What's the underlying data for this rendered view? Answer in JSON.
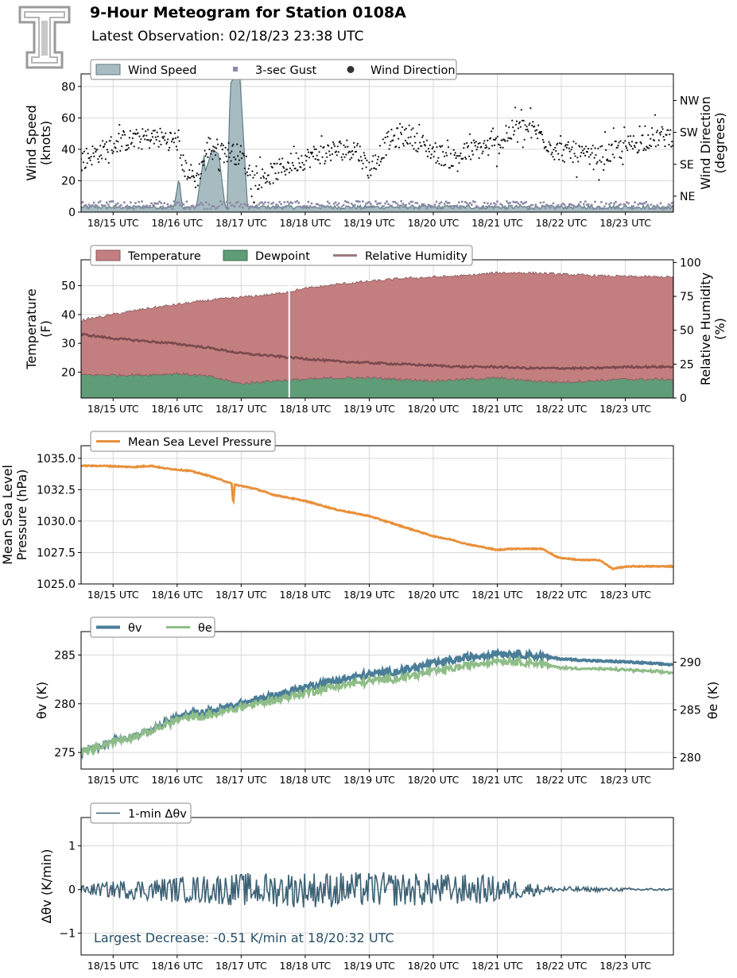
{
  "header": {
    "title": "9-Hour Meteogram for Station 0108A",
    "subtitle": "Latest Observation: 02/18/23 23:38 UTC"
  },
  "chart_data": [
    {
      "type": "area",
      "title": "",
      "ylabel": [
        "Wind Speed",
        "(knots)"
      ],
      "y2label": [
        "Wind Direction",
        "(degrees)"
      ],
      "xlim": [
        14.5,
        23.75
      ],
      "ylim": [
        0,
        88
      ],
      "y2lim": [
        0,
        390
      ],
      "yticks": [
        0,
        20,
        40,
        60,
        80
      ],
      "y2ticks": [
        45,
        135,
        225,
        315
      ],
      "y2ticklabels": [
        "NE",
        "SE",
        "SW",
        "NW"
      ],
      "x_ticks": [
        15,
        16,
        17,
        18,
        19,
        20,
        21,
        22,
        23
      ],
      "x_tick_labels": [
        "18/15 UTC",
        "18/16 UTC",
        "18/17 UTC",
        "18/18 UTC",
        "18/19 UTC",
        "18/20 UTC",
        "18/21 UTC",
        "18/22 UTC",
        "18/23 UTC"
      ],
      "legend": [
        "Wind Speed",
        "3-sec Gust",
        "Wind Direction"
      ],
      "legend_placement": "top-left",
      "grid": true,
      "colors": {
        "speed_fill": "#a7bcc1",
        "speed_line": "#5e7d85",
        "gust": "#8d8aa8",
        "direction": "#111111"
      },
      "series": [
        {
          "name": "Wind Speed",
          "kind": "area",
          "x": [
            14.5,
            15.0,
            15.5,
            15.95,
            16.03,
            16.08,
            16.15,
            16.3,
            16.42,
            16.44,
            16.55,
            16.65,
            16.7,
            16.75,
            16.78,
            16.83,
            16.88,
            16.98,
            17.1,
            17.5,
            18.0,
            18.5,
            19.0,
            19.5,
            20.0,
            20.5,
            21.0,
            21.5,
            22.0,
            22.5,
            23.0,
            23.5,
            23.75
          ],
          "values": [
            3,
            3,
            3,
            3,
            22,
            3,
            3,
            3,
            36,
            26,
            40,
            37,
            20,
            3,
            3,
            82,
            85,
            86,
            3,
            3,
            3,
            3,
            3,
            3,
            3,
            3,
            3,
            3,
            3,
            3,
            3,
            3,
            3
          ]
        },
        {
          "name": "3-sec Gust",
          "kind": "scatter",
          "x_range": [
            14.5,
            23.75
          ],
          "value_range": [
            2,
            7
          ]
        },
        {
          "name": "Wind Direction",
          "kind": "scatter",
          "x": [
            14.5,
            14.8,
            15.1,
            15.4,
            15.7,
            16.0,
            16.1,
            16.3,
            16.5,
            16.7,
            16.8,
            17.0,
            17.2,
            17.5,
            17.8,
            18.0,
            18.2,
            18.5,
            18.8,
            19.0,
            19.3,
            19.6,
            20.0,
            20.3,
            20.6,
            21.0,
            21.3,
            21.6,
            21.9,
            22.2,
            22.5,
            22.8,
            23.1,
            23.4,
            23.75
          ],
          "values": [
            150,
            170,
            200,
            205,
            210,
            200,
            130,
            90,
            190,
            170,
            170,
            160,
            90,
            110,
            140,
            150,
            165,
            175,
            180,
            120,
            200,
            220,
            170,
            150,
            175,
            190,
            240,
            230,
            175,
            165,
            150,
            170,
            190,
            210,
            215
          ],
          "spread": 30
        }
      ]
    },
    {
      "type": "area",
      "title": "",
      "ylabel": [
        "Temperature",
        "(F)"
      ],
      "y2label": [
        "Relative Humidity",
        "(%)"
      ],
      "xlim": [
        14.5,
        23.75
      ],
      "ylim": [
        11,
        59
      ],
      "y2lim": [
        0,
        102
      ],
      "yticks": [
        20,
        30,
        40,
        50
      ],
      "y2ticks": [
        0,
        25,
        50,
        75,
        100
      ],
      "x_ticks": [
        15,
        16,
        17,
        18,
        19,
        20,
        21,
        22,
        23
      ],
      "x_tick_labels": [
        "18/15 UTC",
        "18/16 UTC",
        "18/17 UTC",
        "18/18 UTC",
        "18/19 UTC",
        "18/20 UTC",
        "18/21 UTC",
        "18/22 UTC",
        "18/23 UTC"
      ],
      "legend": [
        "Temperature",
        "Dewpoint",
        "Relative Humidity"
      ],
      "legend_placement": "top-left",
      "grid": true,
      "colors": {
        "temperature": "#c37e80",
        "dewpoint": "#5f9c78",
        "rh": "#7a4a4e"
      },
      "series": [
        {
          "name": "Temperature",
          "x": [
            14.5,
            15.0,
            15.5,
            16.0,
            16.5,
            17.0,
            17.5,
            18.0,
            18.5,
            19.0,
            19.5,
            20.0,
            20.5,
            21.0,
            21.5,
            22.0,
            22.5,
            23.0,
            23.75
          ],
          "values": [
            38,
            40,
            42,
            43.5,
            45,
            46,
            47,
            49,
            50.5,
            51.5,
            52.5,
            53,
            53.5,
            54.5,
            54.5,
            54,
            53.5,
            53.2,
            53
          ]
        },
        {
          "name": "Dewpoint",
          "x": [
            14.5,
            15.0,
            15.5,
            16.0,
            16.5,
            17.0,
            17.5,
            18.0,
            18.5,
            19.0,
            19.5,
            20.0,
            20.5,
            21.0,
            21.5,
            22.0,
            22.5,
            23.0,
            23.75
          ],
          "values": [
            19,
            19,
            19,
            19.5,
            18.5,
            16,
            17,
            17.5,
            18,
            18,
            17.5,
            17,
            17.5,
            18,
            17,
            16.5,
            17,
            17.5,
            17.5
          ]
        },
        {
          "name": "Relative Humidity",
          "x": [
            14.5,
            15.0,
            15.5,
            16.0,
            16.5,
            17.0,
            17.5,
            18.0,
            18.5,
            19.0,
            19.5,
            20.0,
            20.5,
            21.0,
            21.5,
            22.0,
            22.5,
            23.0,
            23.75
          ],
          "values": [
            47,
            44,
            42,
            40,
            37,
            33,
            31,
            29,
            27,
            26,
            25,
            24,
            23,
            23,
            22,
            22,
            22,
            23,
            23
          ]
        }
      ]
    },
    {
      "type": "line",
      "title": "",
      "ylabel": [
        "Mean Sea Level",
        "Pressure (hPa)"
      ],
      "xlim": [
        14.5,
        23.75
      ],
      "ylim": [
        1025.0,
        1036.0
      ],
      "yticks": [
        1025.0,
        1027.5,
        1030.0,
        1032.5,
        1035.0
      ],
      "ytick_labels": [
        "1025.0",
        "1027.5",
        "1030.0",
        "1032.5",
        "1035.0"
      ],
      "x_ticks": [
        15,
        16,
        17,
        18,
        19,
        20,
        21,
        22,
        23
      ],
      "x_tick_labels": [
        "18/15 UTC",
        "18/16 UTC",
        "18/17 UTC",
        "18/18 UTC",
        "18/19 UTC",
        "18/20 UTC",
        "18/21 UTC",
        "18/22 UTC",
        "18/23 UTC"
      ],
      "legend": [
        "Mean Sea Level Pressure"
      ],
      "legend_placement": "top-left",
      "grid": true,
      "colors": {
        "mslp": "#e8903a"
      },
      "series": [
        {
          "name": "Mean Sea Level Pressure",
          "x": [
            14.5,
            14.85,
            15.3,
            15.6,
            15.8,
            16.2,
            16.5,
            16.85,
            16.87,
            16.88,
            16.9,
            17.2,
            17.5,
            18.0,
            18.5,
            19.0,
            19.5,
            20.0,
            20.3,
            20.5,
            21.0,
            21.2,
            21.7,
            21.95,
            22.3,
            22.6,
            22.8,
            22.9,
            23.1,
            23.5,
            23.75
          ],
          "values": [
            1034.4,
            1034.4,
            1034.3,
            1034.4,
            1034.2,
            1034.0,
            1033.6,
            1033.0,
            1031.7,
            1031.6,
            1032.9,
            1032.6,
            1032.1,
            1031.6,
            1030.9,
            1030.4,
            1029.6,
            1028.8,
            1028.5,
            1028.2,
            1027.7,
            1027.8,
            1027.8,
            1027.1,
            1026.9,
            1026.9,
            1026.2,
            1026.3,
            1026.4,
            1026.4,
            1026.4
          ]
        }
      ]
    },
    {
      "type": "line",
      "title": "",
      "ylabel": "θv (K)",
      "y2label": "θe (K)",
      "xlim": [
        14.5,
        23.75
      ],
      "ylim": [
        273.3,
        287.4
      ],
      "y2lim": [
        278.8,
        293.2
      ],
      "yticks": [
        275,
        280,
        285
      ],
      "y2ticks": [
        280,
        285,
        290
      ],
      "x_ticks": [
        15,
        16,
        17,
        18,
        19,
        20,
        21,
        22,
        23
      ],
      "x_tick_labels": [
        "18/15 UTC",
        "18/16 UTC",
        "18/17 UTC",
        "18/18 UTC",
        "18/19 UTC",
        "18/20 UTC",
        "18/21 UTC",
        "18/22 UTC",
        "18/23 UTC"
      ],
      "legend": [
        "θv",
        "θe"
      ],
      "legend_placement": "top-left",
      "grid": true,
      "colors": {
        "theta_v": "#4a7d98",
        "theta_e": "#8fbd88"
      },
      "series": [
        {
          "name": "θv",
          "x": [
            14.5,
            15.0,
            15.5,
            16.0,
            16.5,
            17.0,
            17.5,
            18.0,
            18.5,
            19.0,
            19.5,
            20.0,
            20.5,
            21.0,
            21.5,
            22.0,
            22.5,
            23.0,
            23.75
          ],
          "values": [
            275.0,
            276.2,
            277.0,
            278.6,
            279.2,
            280.0,
            280.8,
            281.7,
            282.4,
            283.0,
            283.4,
            284.1,
            284.7,
            285.2,
            285.0,
            284.6,
            284.4,
            284.3,
            284.0
          ]
        },
        {
          "name": "θe",
          "x": [
            14.5,
            15.0,
            15.5,
            16.0,
            16.5,
            17.0,
            17.5,
            18.0,
            18.5,
            19.0,
            19.5,
            20.0,
            20.5,
            21.0,
            21.5,
            22.0,
            22.5,
            23.0,
            23.75
          ],
          "values": [
            280.5,
            281.7,
            282.5,
            284.0,
            284.4,
            285.3,
            286.0,
            286.8,
            287.5,
            288.0,
            288.4,
            289.0,
            289.6,
            290.2,
            290.0,
            289.4,
            289.3,
            289.2,
            288.9
          ]
        }
      ]
    },
    {
      "type": "line",
      "title": "",
      "ylabel": "Δθv (K/min)",
      "xlim": [
        14.5,
        23.75
      ],
      "ylim": [
        -1.5,
        1.65
      ],
      "yticks": [
        -1,
        0,
        1
      ],
      "ytick_labels": [
        "−1",
        "0",
        "1"
      ],
      "x_ticks": [
        15,
        16,
        17,
        18,
        19,
        20,
        21,
        22,
        23
      ],
      "x_tick_labels": [
        "18/15 UTC",
        "18/16 UTC",
        "18/17 UTC",
        "18/18 UTC",
        "18/19 UTC",
        "18/20 UTC",
        "18/21 UTC",
        "18/22 UTC",
        "18/23 UTC"
      ],
      "legend": [
        "1-min Δθv"
      ],
      "legend_placement": "top-left",
      "grid": true,
      "colors": {
        "dtheta": "#3d6275",
        "annotation": "#274f66"
      },
      "annotation": "Largest Decrease: -0.51 K/min at 18/20:32 UTC",
      "series": [
        {
          "name": "1-min Δθv",
          "x_range": [
            14.5,
            23.75
          ],
          "amplitude_by_hour": {
            "x": [
              14.5,
              15.0,
              16.0,
              17.0,
              18.0,
              19.0,
              20.0,
              21.0,
              21.8,
              22.5,
              23.75
            ],
            "values": [
              0.1,
              0.2,
              0.3,
              0.38,
              0.42,
              0.4,
              0.38,
              0.32,
              0.08,
              0.05,
              0.02
            ]
          }
        }
      ]
    }
  ]
}
